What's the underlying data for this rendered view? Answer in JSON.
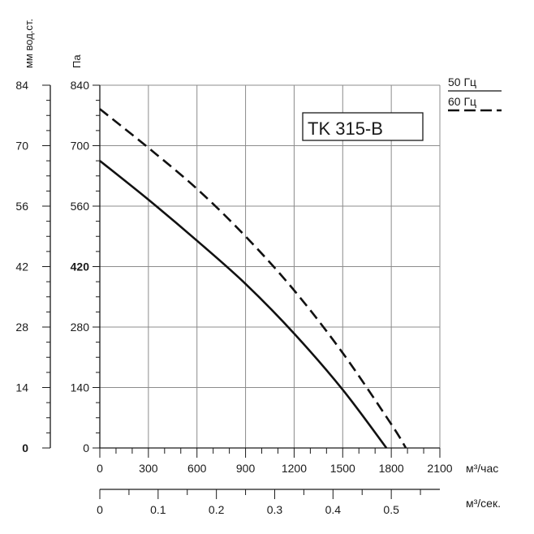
{
  "chart_data": {
    "type": "line",
    "title": "TK 315-B",
    "xlabel": "м³/час",
    "x2label": "м³/сек.",
    "ylabel": "Па",
    "y2label": "мм вод.ст.",
    "xlim": [
      0,
      2100
    ],
    "ylim": [
      0,
      840
    ],
    "x_ticks": [
      0,
      300,
      600,
      900,
      1200,
      1500,
      1800,
      2100
    ],
    "y_ticks": [
      0,
      140,
      280,
      420,
      560,
      700,
      840
    ],
    "x2_ticks": [
      0,
      0.1,
      0.2,
      0.3,
      0.4,
      0.5
    ],
    "y2_ticks": [
      0,
      14,
      28,
      42,
      56,
      70,
      84
    ],
    "grid": true,
    "legend": {
      "position": "top-right",
      "items": [
        {
          "label": "50 Гц",
          "style": "solid"
        },
        {
          "label": "60 Гц",
          "style": "dashed"
        }
      ]
    },
    "series": [
      {
        "name": "50 Гц",
        "style": "solid",
        "x": [
          0,
          300,
          600,
          900,
          1200,
          1500,
          1770
        ],
        "y": [
          665,
          575,
          480,
          380,
          265,
          135,
          0
        ]
      },
      {
        "name": "60 Гц",
        "style": "dashed",
        "x": [
          0,
          300,
          600,
          900,
          1200,
          1500,
          1800,
          1890
        ],
        "y": [
          785,
          695,
          600,
          490,
          365,
          220,
          55,
          0
        ]
      }
    ]
  },
  "colors": {
    "line": "#111111",
    "grid": "#8c8c8c",
    "axis": "#1a1a1a"
  }
}
